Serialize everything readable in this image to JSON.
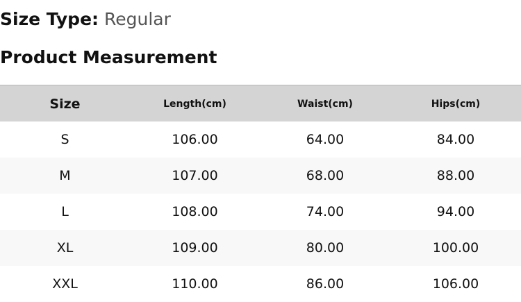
{
  "size_type": {
    "label": "Size Type:",
    "value": "Regular"
  },
  "section_title": "Product Measurement",
  "table": {
    "headers": [
      "Size",
      "Length(cm)",
      "Waist(cm)",
      "Hips(cm)"
    ],
    "rows": [
      [
        "S",
        "106.00",
        "64.00",
        "84.00"
      ],
      [
        "M",
        "107.00",
        "68.00",
        "88.00"
      ],
      [
        "L",
        "108.00",
        "74.00",
        "94.00"
      ],
      [
        "XL",
        "109.00",
        "80.00",
        "100.00"
      ],
      [
        "XXL",
        "110.00",
        "86.00",
        "106.00"
      ]
    ]
  },
  "colors": {
    "header_bg": "#d4d4d4",
    "alt_row_bg": "#f8f8f8"
  }
}
